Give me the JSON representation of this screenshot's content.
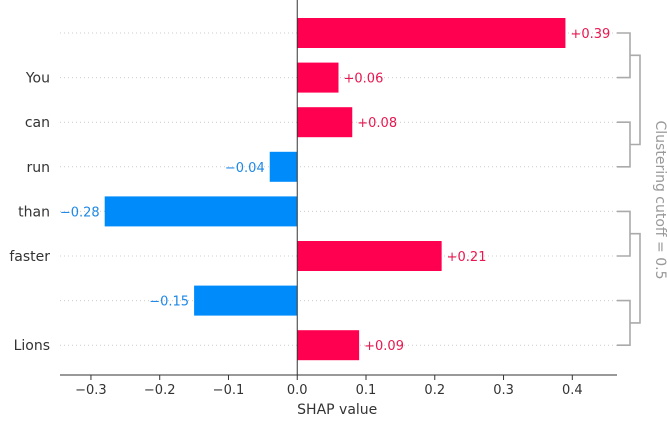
{
  "chart_data": {
    "type": "bar",
    "orientation": "horizontal",
    "categories": [
      "",
      "You",
      "can",
      "run",
      "than",
      "faster",
      "",
      "Lions"
    ],
    "values": [
      0.39,
      0.06,
      0.08,
      -0.04,
      -0.28,
      0.21,
      -0.15,
      0.09
    ],
    "value_labels": [
      "+0.39",
      "+0.06",
      "+0.08",
      "−0.04",
      "−0.28",
      "+0.21",
      "−0.15",
      "+0.09"
    ],
    "xlabel": "SHAP value",
    "xlim": [
      -0.345,
      0.465
    ],
    "xticks": [
      -0.3,
      -0.2,
      -0.1,
      0.0,
      0.1,
      0.2,
      0.3,
      0.4
    ],
    "xtick_labels": [
      "−0.3",
      "−0.2",
      "−0.1",
      "0.0",
      "0.1",
      "0.2",
      "0.3",
      "0.4"
    ],
    "grid": "dotted horizontal row guides",
    "cluster_label": "Clustering cutoff = 0.5",
    "colors": {
      "positive": "#ff0051",
      "negative": "#008bfb",
      "positive_text": "#e8174f",
      "negative_text": "#1e88e5",
      "dendrogram": "#aaaaaa"
    }
  }
}
